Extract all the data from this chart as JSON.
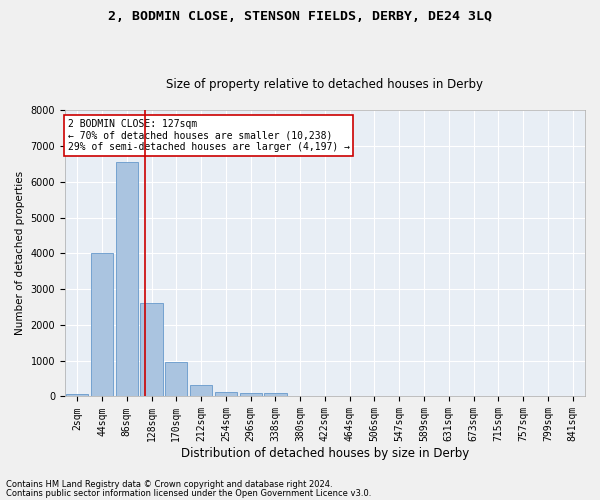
{
  "title": "2, BODMIN CLOSE, STENSON FIELDS, DERBY, DE24 3LQ",
  "subtitle": "Size of property relative to detached houses in Derby",
  "xlabel": "Distribution of detached houses by size in Derby",
  "ylabel": "Number of detached properties",
  "footnote1": "Contains HM Land Registry data © Crown copyright and database right 2024.",
  "footnote2": "Contains public sector information licensed under the Open Government Licence v3.0.",
  "bar_labels": [
    "2sqm",
    "44sqm",
    "86sqm",
    "128sqm",
    "170sqm",
    "212sqm",
    "254sqm",
    "296sqm",
    "338sqm",
    "380sqm",
    "422sqm",
    "464sqm",
    "506sqm",
    "547sqm",
    "589sqm",
    "631sqm",
    "673sqm",
    "715sqm",
    "757sqm",
    "799sqm",
    "841sqm"
  ],
  "bar_values": [
    75,
    4000,
    6550,
    2620,
    960,
    310,
    130,
    100,
    95,
    0,
    0,
    0,
    0,
    0,
    0,
    0,
    0,
    0,
    0,
    0,
    0
  ],
  "bar_color": "#aac4e0",
  "bar_edge_color": "#6699cc",
  "background_color": "#e8eef5",
  "grid_color": "#ffffff",
  "annotation_text": "2 BODMIN CLOSE: 127sqm\n← 70% of detached houses are smaller (10,238)\n29% of semi-detached houses are larger (4,197) →",
  "annotation_box_color": "#ffffff",
  "annotation_box_edge": "#cc0000",
  "vline_x": 2.75,
  "vline_color": "#cc0000",
  "ylim": [
    0,
    8000
  ],
  "yticks": [
    0,
    1000,
    2000,
    3000,
    4000,
    5000,
    6000,
    7000,
    8000
  ],
  "title_fontsize": 9.5,
  "subtitle_fontsize": 8.5,
  "xlabel_fontsize": 8.5,
  "ylabel_fontsize": 7.5,
  "tick_fontsize": 7,
  "annotation_fontsize": 7,
  "footnote_fontsize": 6
}
